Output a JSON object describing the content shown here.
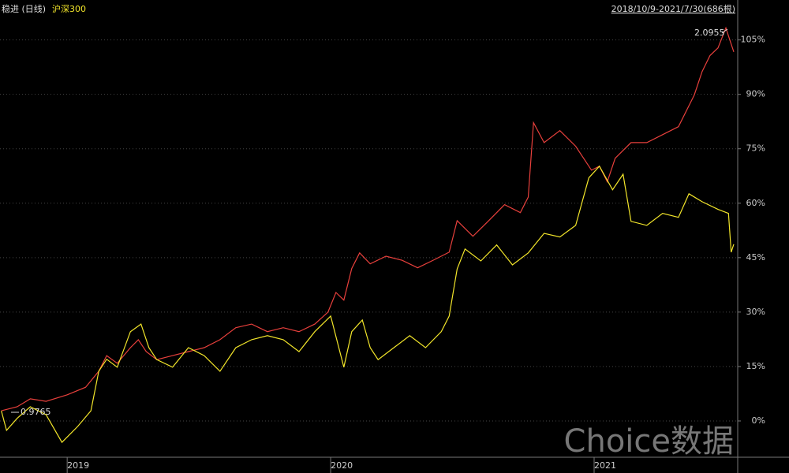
{
  "chart_data": {
    "type": "line",
    "range_label": "2018/10/9-2021/7/30(686根)",
    "annotations": [
      "2.0955",
      "0.9765"
    ],
    "watermark": "Choice数据",
    "xlim": [
      2018.745,
      2021.545
    ],
    "xticks": [
      2019,
      2020,
      2021
    ],
    "ylim": [
      -10,
      116
    ],
    "yticks": [
      {
        "value": 0,
        "label": "0%"
      },
      {
        "value": 15,
        "label": "15%"
      },
      {
        "value": 30,
        "label": "30%"
      },
      {
        "value": 45,
        "label": "45%"
      },
      {
        "value": 60,
        "label": "60%"
      },
      {
        "value": 75,
        "label": "75%"
      },
      {
        "value": 90,
        "label": "90%"
      },
      {
        "value": 105,
        "label": "105%"
      }
    ],
    "grid": true,
    "series": [
      {
        "name": "稳进 (日线)",
        "color": "#e8403c",
        "x": [
          2018.75,
          2018.81,
          2018.86,
          2018.92,
          2019.0,
          2019.07,
          2019.12,
          2019.15,
          2019.19,
          2019.24,
          2019.27,
          2019.3,
          2019.34,
          2019.4,
          2019.46,
          2019.52,
          2019.58,
          2019.64,
          2019.7,
          2019.76,
          2019.82,
          2019.88,
          2019.94,
          2019.99,
          2020.02,
          2020.05,
          2020.08,
          2020.11,
          2020.15,
          2020.21,
          2020.27,
          2020.33,
          2020.39,
          2020.45,
          2020.48,
          2020.54,
          2020.6,
          2020.66,
          2020.72,
          2020.75,
          2020.77,
          2020.81,
          2020.87,
          2020.93,
          2020.99,
          2021.02,
          2021.05,
          2021.08,
          2021.14,
          2021.2,
          2021.26,
          2021.32,
          2021.38,
          2021.41,
          2021.44,
          2021.47,
          2021.5,
          2021.51,
          2021.53
        ],
        "values": [
          2.8,
          3.9,
          6.1,
          5.4,
          7.2,
          9.3,
          13.7,
          18.0,
          15.9,
          20.2,
          22.4,
          19.1,
          16.9,
          18.0,
          19.1,
          20.2,
          22.4,
          25.7,
          26.7,
          24.6,
          25.7,
          24.6,
          26.7,
          30.0,
          35.4,
          33.3,
          42.0,
          46.3,
          43.3,
          45.4,
          44.3,
          42.2,
          44.3,
          46.5,
          55.2,
          50.9,
          55.2,
          59.6,
          57.4,
          61.7,
          82.2,
          76.7,
          80.0,
          75.7,
          69.1,
          70.2,
          65.9,
          72.4,
          76.7,
          76.7,
          78.9,
          81.1,
          89.8,
          96.3,
          100.7,
          102.8,
          108.3,
          106.1,
          101.7
        ]
      },
      {
        "name": "沪深300",
        "color": "#f2e52a",
        "x": [
          2018.75,
          2018.77,
          2018.81,
          2018.86,
          2018.92,
          2018.98,
          2019.04,
          2019.09,
          2019.12,
          2019.15,
          2019.19,
          2019.24,
          2019.28,
          2019.31,
          2019.34,
          2019.4,
          2019.46,
          2019.52,
          2019.58,
          2019.64,
          2019.7,
          2019.76,
          2019.82,
          2019.88,
          2019.94,
          2020.0,
          2020.05,
          2020.08,
          2020.12,
          2020.15,
          2020.18,
          2020.24,
          2020.3,
          2020.36,
          2020.42,
          2020.45,
          2020.48,
          2020.51,
          2020.57,
          2020.63,
          2020.69,
          2020.75,
          2020.81,
          2020.87,
          2020.93,
          2020.98,
          2021.02,
          2021.07,
          2021.11,
          2021.14,
          2021.2,
          2021.26,
          2021.32,
          2021.36,
          2021.41,
          2021.47,
          2021.51,
          2021.52,
          2021.53
        ],
        "values": [
          2.8,
          -2.6,
          0.7,
          3.9,
          1.7,
          -5.9,
          -1.5,
          2.8,
          13.7,
          17.0,
          14.8,
          24.6,
          26.7,
          20.2,
          16.9,
          14.8,
          20.2,
          18.0,
          13.7,
          20.2,
          22.4,
          23.5,
          22.4,
          19.1,
          24.6,
          28.9,
          14.8,
          24.6,
          27.8,
          20.2,
          16.9,
          20.2,
          23.5,
          20.2,
          24.6,
          28.9,
          41.9,
          47.4,
          44.1,
          48.5,
          43.0,
          46.3,
          51.7,
          50.7,
          53.9,
          67.0,
          70.2,
          63.7,
          68.0,
          55.0,
          53.9,
          57.2,
          56.1,
          62.6,
          60.4,
          58.3,
          57.2,
          46.5,
          48.7
        ]
      }
    ]
  }
}
